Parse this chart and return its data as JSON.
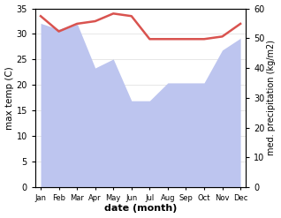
{
  "months": [
    "Jan",
    "Feb",
    "Mar",
    "Apr",
    "May",
    "Jun",
    "Jul",
    "Aug",
    "Sep",
    "Oct",
    "Nov",
    "Dec"
  ],
  "temp": [
    33.5,
    30.5,
    32.0,
    32.5,
    34.0,
    33.5,
    29.0,
    29.0,
    29.0,
    29.0,
    29.5,
    32.0
  ],
  "precip_mm": [
    55,
    53,
    55,
    40,
    43,
    29,
    29,
    35,
    35,
    35,
    46,
    50
  ],
  "temp_color": "#d9534f",
  "precip_fill_color": "#bdc5ef",
  "ylabel_left": "max temp (C)",
  "ylabel_right": "med. precipitation (kg/m2)",
  "xlabel": "date (month)",
  "ylim_left": [
    0,
    35
  ],
  "ylim_right": [
    0,
    60
  ],
  "yticks_left": [
    0,
    5,
    10,
    15,
    20,
    25,
    30,
    35
  ],
  "yticks_right": [
    0,
    10,
    20,
    30,
    40,
    50,
    60
  ],
  "background_color": "#ffffff"
}
